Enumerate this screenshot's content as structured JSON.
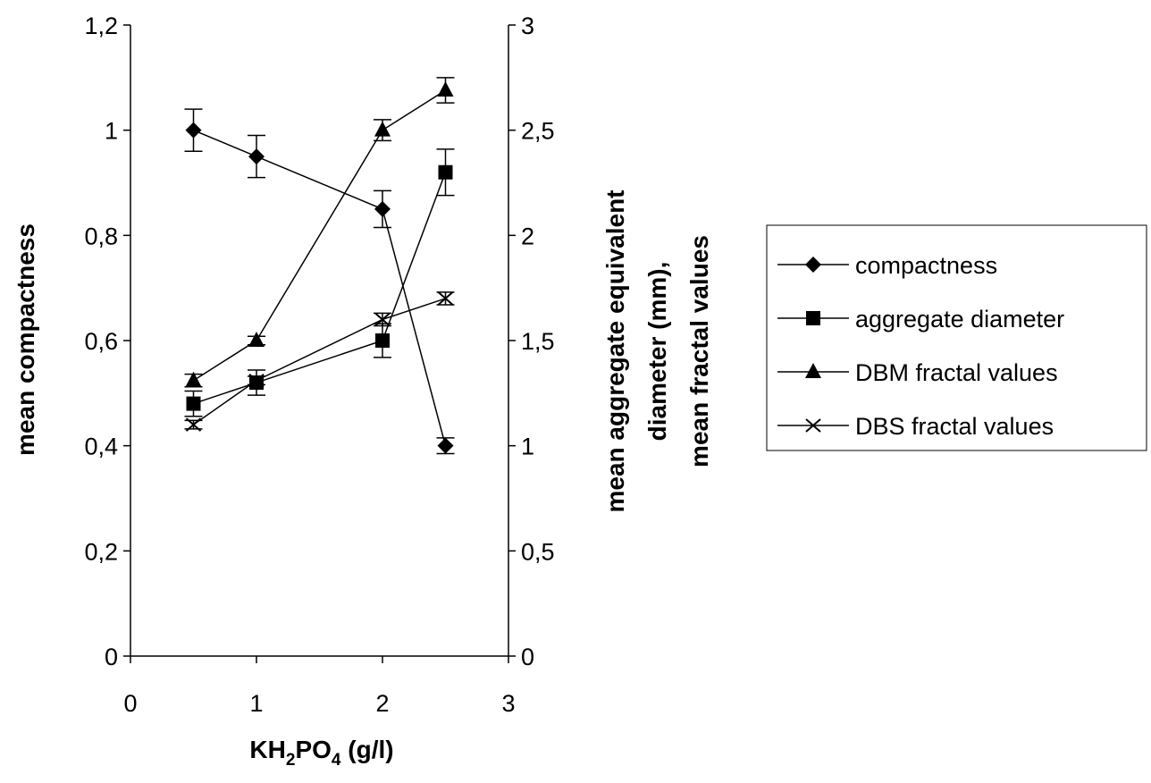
{
  "chart_data": {
    "type": "line",
    "x_axis": {
      "label_main": "KH",
      "label_sub1": "2",
      "label_mid": "PO",
      "label_sub2": "4",
      "label_tail": " (g/l)",
      "range": [
        0,
        3
      ],
      "ticks": [
        "0",
        "1",
        "2",
        "3"
      ]
    },
    "y_left": {
      "label": "mean compactness",
      "range": [
        0,
        1.2
      ],
      "ticks": [
        "0",
        "0,2",
        "0,4",
        "0,6",
        "0,8",
        "1",
        "1,2"
      ]
    },
    "y_right": {
      "label_lines": [
        "mean aggregate equivalent",
        "diameter (mm),",
        "mean fractal values"
      ],
      "range": [
        0,
        3
      ],
      "ticks": [
        "0",
        "0,5",
        "1",
        "1,5",
        "2",
        "2,5",
        "3"
      ]
    },
    "grid": false,
    "legend_position": "right",
    "series": [
      {
        "name": "compactness",
        "marker": "diamond",
        "axis": "left",
        "x": [
          0.5,
          1,
          2,
          2.5
        ],
        "y": [
          1.0,
          0.95,
          0.85,
          0.4
        ],
        "err": [
          0.04,
          0.04,
          0.035,
          0.015
        ]
      },
      {
        "name": "aggregate diameter",
        "marker": "square",
        "axis": "right",
        "x": [
          0.5,
          1,
          2,
          2.5
        ],
        "y": [
          1.2,
          1.3,
          1.5,
          2.3
        ],
        "err": [
          0.06,
          0.06,
          0.08,
          0.11
        ]
      },
      {
        "name": "DBM fractal values",
        "marker": "triangle",
        "axis": "right",
        "x": [
          0.5,
          1,
          2,
          2.5
        ],
        "y": [
          1.31,
          1.5,
          2.5,
          2.69
        ],
        "err": [
          0.03,
          0.02,
          0.05,
          0.06
        ]
      },
      {
        "name": "DBS fractal values",
        "marker": "x",
        "axis": "right",
        "x": [
          0.5,
          1,
          2,
          2.5
        ],
        "y": [
          1.1,
          1.31,
          1.6,
          1.7
        ],
        "err": [
          0.02,
          0.02,
          0.03,
          0.03
        ]
      }
    ]
  }
}
